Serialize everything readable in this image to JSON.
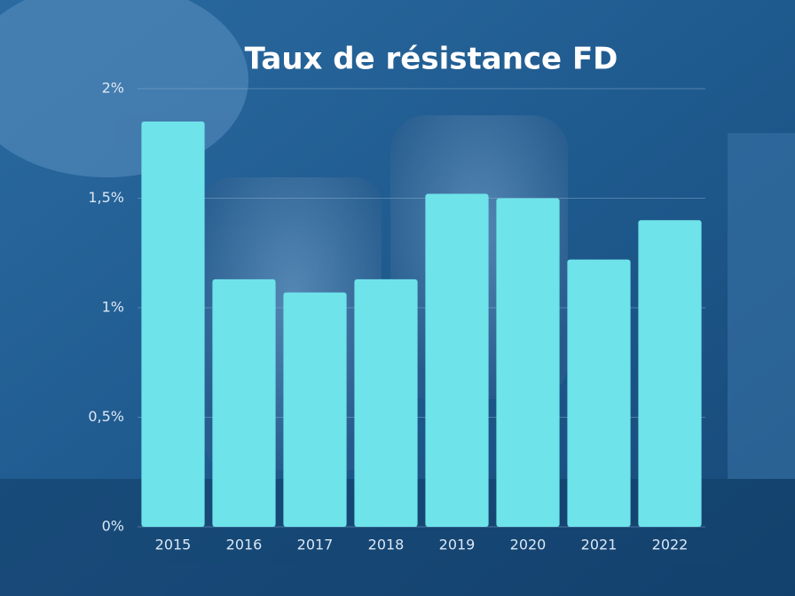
{
  "chart_data": {
    "type": "bar",
    "title": "Taux de résistance FD",
    "categories": [
      "2015",
      "2016",
      "2017",
      "2018",
      "2019",
      "2020",
      "2021",
      "2022"
    ],
    "values": [
      1.85,
      1.13,
      1.07,
      1.13,
      1.52,
      1.5,
      1.22,
      1.4
    ],
    "color": "#6ee3ea",
    "ylim": [
      0,
      2
    ],
    "yticks": [
      {
        "value": 0,
        "label": "0%"
      },
      {
        "value": 0.5,
        "label": "0,5%"
      },
      {
        "value": 1,
        "label": "1%"
      },
      {
        "value": 1.5,
        "label": "1,5%"
      },
      {
        "value": 2,
        "label": "2%"
      }
    ],
    "grid": true
  }
}
